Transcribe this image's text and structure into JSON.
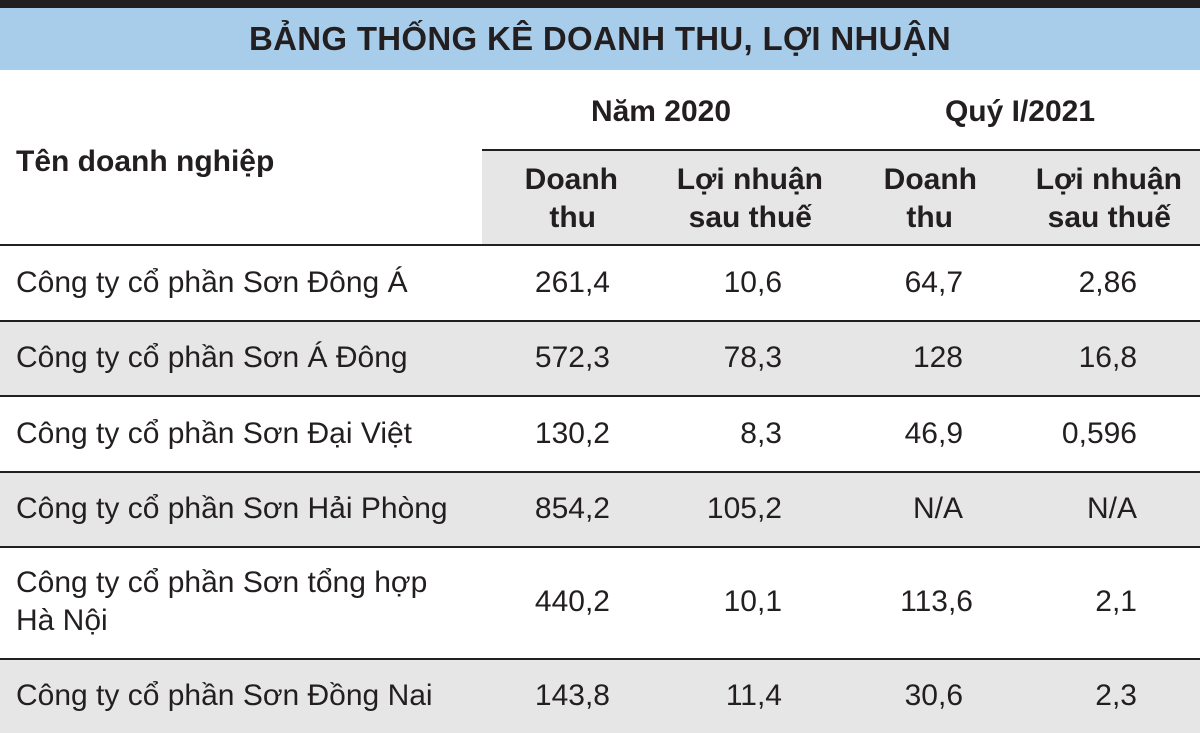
{
  "title": "BẢNG THỐNG KÊ DOANH THU, LỢI NHUẬN",
  "columns": {
    "company": "Tên doanh nghiệp",
    "group_2020": "Năm 2020",
    "group_q1_2021": "Quý I/2021",
    "revenue": [
      "Doanh",
      "thu"
    ],
    "profit": [
      "Lợi nhuận",
      "sau thuế"
    ]
  },
  "rows": [
    {
      "name": [
        "Công ty cổ phần Sơn Đông Á",
        ""
      ],
      "rev_2020": "261,4",
      "profit_2020": "10,6",
      "rev_q1": "64,7",
      "profit_q1": "2,86"
    },
    {
      "name": [
        "Công ty cổ phần Sơn Á Đông",
        ""
      ],
      "rev_2020": "572,3",
      "profit_2020": "78,3",
      "rev_q1": "128",
      "profit_q1": "16,8"
    },
    {
      "name": [
        "Công ty cổ phần Sơn Đại Việt",
        ""
      ],
      "rev_2020": "130,2",
      "profit_2020": "8,3",
      "rev_q1": "46,9",
      "profit_q1": "0,596"
    },
    {
      "name": [
        "Công ty cổ phần Sơn Hải Phòng",
        ""
      ],
      "rev_2020": "854,2",
      "profit_2020": "105,2",
      "rev_q1": "N/A",
      "profit_q1": "N/A"
    },
    {
      "name": [
        "Công ty cổ phần Sơn tổng hợp",
        "Hà Nội"
      ],
      "rev_2020": "440,2",
      "profit_2020": "10,1",
      "rev_q1": "113,6",
      "profit_q1": "2,1"
    },
    {
      "name": [
        "Công ty cổ phần Sơn Đồng Nai",
        ""
      ],
      "rev_2020": "143,8",
      "profit_2020": "11,4",
      "rev_q1": "30,6",
      "profit_q1": "2,3"
    }
  ],
  "colors": {
    "title_bg": "#a8cdea",
    "shade": "#e6e6e7",
    "rule": "#231f20",
    "text": "#231f20"
  }
}
